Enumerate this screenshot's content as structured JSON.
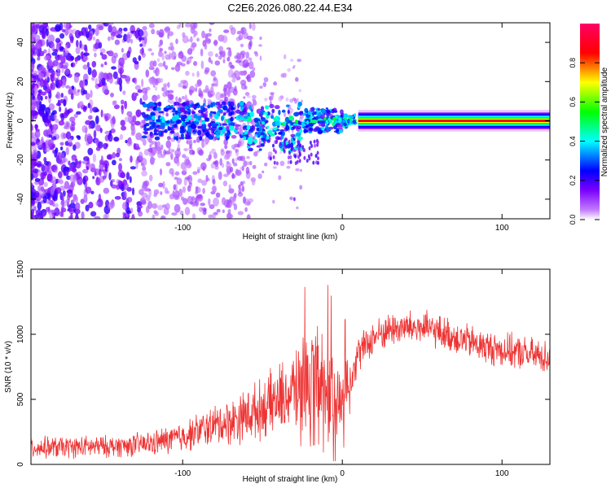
{
  "title": "C2E6.2026.080.22.44.E34",
  "chart_data": [
    {
      "type": "heatmap",
      "title": "C2E6.2026.080.22.44.E34",
      "xlabel": "Height of straight line (km)",
      "ylabel": "Frequency (Hz)",
      "xlim": [
        -195,
        130
      ],
      "ylim": [
        -50,
        50
      ],
      "xticks": [
        -100,
        0,
        100
      ],
      "yticks": [
        -40,
        -20,
        0,
        20,
        40
      ],
      "description_series": {
        "carrier_frequency_hz": 0,
        "diffuse_scatter_region_km": [
          -195,
          -120
        ],
        "broadening_region_km": [
          -125,
          10
        ],
        "coherent_tone_region_km": [
          10,
          130
        ]
      },
      "colorbar": {
        "label": "Normalized spectral amplitude",
        "range": [
          0.0,
          1.0
        ],
        "ticks": [
          0.0,
          0.2,
          0.4,
          0.6,
          0.8
        ],
        "tick_labels": [
          "0.0",
          "0.2",
          "0.4",
          "0.6",
          "0.8"
        ],
        "colors": [
          "#ffffff",
          "#9a00ff",
          "#0000ff",
          "#00ffff",
          "#00ff00",
          "#ffff00",
          "#ff0000",
          "#ff0066"
        ]
      }
    },
    {
      "type": "line",
      "title": "",
      "xlabel": "Height of straight line (km)",
      "ylabel": "SNR (10 * v/v)",
      "xlim": [
        -195,
        130
      ],
      "ylim": [
        0,
        1500
      ],
      "xticks": [
        -100,
        0,
        100
      ],
      "yticks": [
        0,
        500,
        1000,
        1500
      ],
      "series": [
        {
          "name": "SNR",
          "color": "#ee3333",
          "x": [
            -195,
            -180,
            -160,
            -140,
            -120,
            -100,
            -90,
            -80,
            -70,
            -60,
            -50,
            -40,
            -30,
            -25,
            -20,
            -15,
            -10,
            -5,
            0,
            5,
            10,
            20,
            30,
            40,
            50,
            60,
            70,
            80,
            90,
            100,
            110,
            120,
            130
          ],
          "y": [
            130,
            130,
            135,
            140,
            160,
            210,
            260,
            300,
            330,
            380,
            430,
            500,
            560,
            620,
            650,
            700,
            600,
            500,
            480,
            700,
            850,
            980,
            1040,
            1050,
            1050,
            1020,
            980,
            940,
            900,
            880,
            860,
            840,
            820
          ],
          "noise_amplitude": [
            70,
            70,
            70,
            70,
            80,
            100,
            110,
            130,
            150,
            170,
            190,
            220,
            260,
            300,
            320,
            340,
            340,
            300,
            260,
            180,
            120,
            110,
            110,
            110,
            110,
            110,
            110,
            110,
            110,
            110,
            110,
            110,
            110
          ]
        }
      ]
    }
  ]
}
